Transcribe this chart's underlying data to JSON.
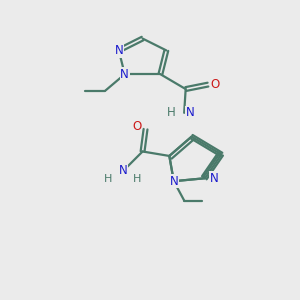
{
  "background_color": "#ebebeb",
  "bond_color": "#4a7a6a",
  "N_color": "#1a1acc",
  "O_color": "#cc1a1a",
  "figsize": [
    3.0,
    3.0
  ],
  "dpi": 100,
  "lw": 1.6,
  "fs": 8.5,
  "xlim": [
    0,
    10
  ],
  "ylim": [
    0,
    10
  ]
}
